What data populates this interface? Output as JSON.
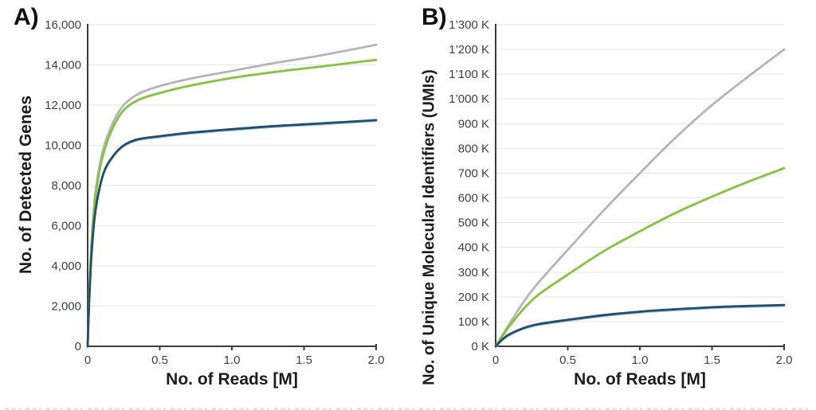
{
  "style": {
    "background": "#ffffff",
    "axis_color": "#3d3d3d",
    "grid_color": "#e7e7e7",
    "tick_text_color": "#3f3f3f",
    "title_text_color": "#1c1c1c",
    "navy_halo_color": "#a9c3d6"
  },
  "chart_data": [
    {
      "type": "line",
      "panel_label": "A)",
      "xlabel": "No. of Reads [M]",
      "ylabel": "No. of Detected Genes",
      "xlim": [
        0,
        2.0
      ],
      "ylim": [
        0,
        16000
      ],
      "grid": "horizontal",
      "legend": "none",
      "x_ticks": [
        0,
        0.5,
        1.0,
        1.5,
        2.0
      ],
      "x_tick_labels": [
        "0",
        "0.5",
        "1.0",
        "1.5",
        "2.0"
      ],
      "y_ticks": [
        0,
        2000,
        4000,
        6000,
        8000,
        10000,
        12000,
        14000,
        16000
      ],
      "y_tick_labels": [
        "0",
        "2,000",
        "4,000",
        "6,000",
        "8,000",
        "10,000",
        "12,000",
        "14,000",
        "16,000"
      ],
      "x": [
        0,
        0.005,
        0.01,
        0.02,
        0.03,
        0.05,
        0.08,
        0.12,
        0.18,
        0.25,
        0.35,
        0.5,
        0.7,
        1.0,
        1.3,
        1.6,
        2.0
      ],
      "series": [
        {
          "name": "gray",
          "color": "#b5b5b5",
          "values": [
            0,
            1300,
            2400,
            4200,
            5600,
            7400,
            8900,
            10100,
            11200,
            12000,
            12550,
            12950,
            13300,
            13700,
            14100,
            14450,
            15000
          ]
        },
        {
          "name": "green",
          "color": "#84c341",
          "values": [
            0,
            1250,
            2300,
            4050,
            5400,
            7150,
            8650,
            9850,
            10950,
            11750,
            12250,
            12600,
            12950,
            13350,
            13650,
            13900,
            14250
          ]
        },
        {
          "name": "navy",
          "color": "#1f4e6e",
          "values": [
            0,
            1150,
            2100,
            3700,
            4900,
            6500,
            7800,
            8800,
            9500,
            10000,
            10300,
            10450,
            10620,
            10800,
            10960,
            11080,
            11250
          ]
        }
      ]
    },
    {
      "type": "line",
      "panel_label": "B)",
      "xlabel": "No. of Reads [M]",
      "ylabel": "No. of Unique Molecular Identifiers (UMIs)",
      "values_unit": "K",
      "xlim": [
        0,
        2.0
      ],
      "ylim": [
        0,
        1300
      ],
      "grid": "horizontal",
      "legend": "none",
      "x_ticks": [
        0,
        0.5,
        1.0,
        1.5,
        2.0
      ],
      "x_tick_labels": [
        "0",
        "0.5",
        "1.0",
        "1.5",
        "2.0"
      ],
      "y_ticks": [
        0,
        100,
        200,
        300,
        400,
        500,
        600,
        700,
        800,
        900,
        1000,
        1100,
        1200,
        1300
      ],
      "y_tick_labels": [
        "0 K",
        "100 K",
        "200 K",
        "300 K",
        "400 K",
        "500 K",
        "600 K",
        "700 K",
        "800 K",
        "900 K",
        "1’000 K",
        "1’100 K",
        "1’200 K",
        "1’300 K"
      ],
      "x": [
        0,
        0.05,
        0.1,
        0.2,
        0.3,
        0.5,
        0.75,
        1.0,
        1.25,
        1.5,
        1.75,
        2.0
      ],
      "series": [
        {
          "name": "gray",
          "color": "#b5b5b5",
          "values": [
            0,
            48,
            95,
            185,
            260,
            390,
            550,
            700,
            845,
            975,
            1090,
            1200
          ]
        },
        {
          "name": "green",
          "color": "#84c341",
          "values": [
            0,
            44,
            85,
            155,
            210,
            290,
            385,
            465,
            540,
            605,
            665,
            720
          ]
        },
        {
          "name": "navy",
          "color": "#1f4e6e",
          "values": [
            0,
            30,
            50,
            75,
            90,
            107,
            126,
            140,
            150,
            158,
            163,
            167
          ]
        }
      ]
    }
  ]
}
